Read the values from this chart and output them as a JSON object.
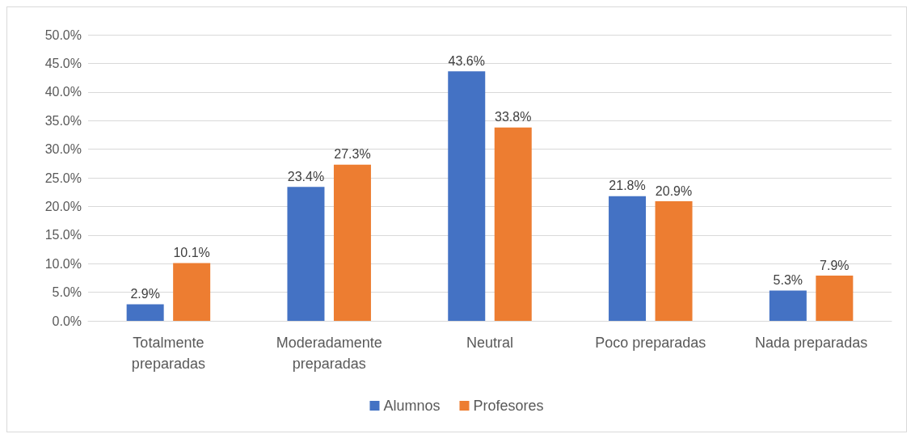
{
  "chart_data": {
    "type": "bar",
    "categories": [
      "Totalmente\npreparadas",
      "Moderadamente\npreparadas",
      "Neutral",
      "Poco preparadas",
      "Nada preparadas"
    ],
    "series": [
      {
        "name": "Alumnos",
        "color": "#4472c4",
        "values": [
          2.9,
          23.4,
          43.6,
          21.8,
          5.3
        ],
        "value_labels": [
          "2.9%",
          "23.4%",
          "43.6%",
          "21.8%",
          "5.3%"
        ]
      },
      {
        "name": "Profesores",
        "color": "#ed7d31",
        "values": [
          10.1,
          27.3,
          33.8,
          20.9,
          7.9
        ],
        "value_labels": [
          "10.1%",
          "27.3%",
          "33.8%",
          "20.9%",
          "7.9%"
        ]
      }
    ],
    "ylim": [
      0,
      50
    ],
    "yticks": [
      {
        "value": 0,
        "label": "0.0%"
      },
      {
        "value": 5,
        "label": "5.0%"
      },
      {
        "value": 10,
        "label": "10.0%"
      },
      {
        "value": 15,
        "label": "15.0%"
      },
      {
        "value": 20,
        "label": "20.0%"
      },
      {
        "value": 25,
        "label": "25.0%"
      },
      {
        "value": 30,
        "label": "30.0%"
      },
      {
        "value": 35,
        "label": "35.0%"
      },
      {
        "value": 40,
        "label": "40.0%"
      },
      {
        "value": 45,
        "label": "45.0%"
      },
      {
        "value": 50,
        "label": "50.0%"
      }
    ],
    "grid": "y",
    "legend": "bottom"
  }
}
